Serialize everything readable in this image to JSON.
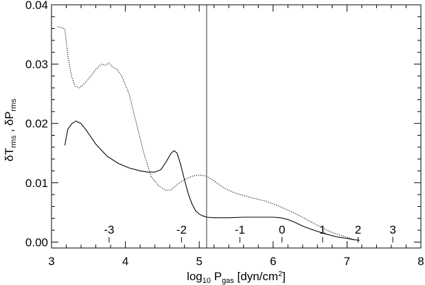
{
  "chart_data": {
    "type": "line",
    "xlabel": {
      "base": "log",
      "base_sub": "10",
      "mid": " P",
      "mid_sub": "gas",
      "tail": " [dyn/cm",
      "sup": "2",
      "close": "]"
    },
    "ylabel": {
      "d1": "δT",
      "s1": "rms",
      "sep": " , δP",
      "s2": "rms"
    },
    "xlim": [
      3,
      8
    ],
    "ylim": [
      -0.001,
      0.04
    ],
    "x_ticks": [
      "3",
      "4",
      "5",
      "6",
      "7",
      "8"
    ],
    "x_tick_values": [
      3,
      4,
      5,
      6,
      7,
      8
    ],
    "y_ticks": [
      "0.00",
      "0.01",
      "0.02",
      "0.03",
      "0.04"
    ],
    "y_tick_values": [
      0.0,
      0.01,
      0.02,
      0.03,
      0.04
    ],
    "vline_x": 5.1,
    "secondary_labels": [
      {
        "label": "-3",
        "x": 3.78
      },
      {
        "label": "-2",
        "x": 4.76
      },
      {
        "label": "-1",
        "x": 5.55
      },
      {
        "label": "0",
        "x": 6.12
      },
      {
        "label": "1",
        "x": 6.67
      },
      {
        "label": "2",
        "x": 7.15
      },
      {
        "label": "3",
        "x": 7.62
      }
    ],
    "series": [
      {
        "style": "solid",
        "x": [
          3.18,
          3.22,
          3.27,
          3.33,
          3.4,
          3.48,
          3.6,
          3.75,
          3.9,
          4.05,
          4.2,
          4.3,
          4.4,
          4.48,
          4.55,
          4.62,
          4.66,
          4.7,
          4.75,
          4.8,
          4.85,
          4.9,
          4.95,
          5.0,
          5.05,
          5.1,
          5.2,
          5.4,
          5.6,
          5.8,
          6.0,
          6.1,
          6.2,
          6.3,
          6.4,
          6.55,
          6.7,
          6.85,
          7.0,
          7.1,
          7.17
        ],
        "y": [
          0.0163,
          0.019,
          0.0199,
          0.0204,
          0.02,
          0.0187,
          0.0165,
          0.0145,
          0.0133,
          0.0125,
          0.012,
          0.0118,
          0.0118,
          0.0122,
          0.0135,
          0.015,
          0.0154,
          0.015,
          0.013,
          0.0105,
          0.0082,
          0.0065,
          0.0053,
          0.0047,
          0.0044,
          0.0042,
          0.0041,
          0.0041,
          0.0042,
          0.0042,
          0.0042,
          0.0041,
          0.0038,
          0.0033,
          0.0027,
          0.002,
          0.0014,
          0.0009,
          0.0006,
          0.0004,
          0.0003
        ]
      },
      {
        "style": "dotted",
        "x": [
          3.08,
          3.13,
          3.18,
          3.22,
          3.27,
          3.32,
          3.38,
          3.45,
          3.52,
          3.58,
          3.63,
          3.68,
          3.73,
          3.78,
          3.83,
          3.88,
          3.95,
          4.05,
          4.15,
          4.25,
          4.35,
          4.45,
          4.55,
          4.62,
          4.7,
          4.8,
          4.9,
          5.0,
          5.1,
          5.2,
          5.35,
          5.5,
          5.7,
          5.9,
          6.05,
          6.2,
          6.35,
          6.5,
          6.65,
          6.8,
          6.95,
          7.05,
          7.1
        ],
        "y": [
          0.0363,
          0.0362,
          0.0359,
          0.0315,
          0.028,
          0.0263,
          0.026,
          0.0268,
          0.0278,
          0.0288,
          0.0295,
          0.03,
          0.0298,
          0.0302,
          0.0295,
          0.0292,
          0.028,
          0.025,
          0.02,
          0.015,
          0.011,
          0.0095,
          0.0087,
          0.0088,
          0.0097,
          0.0105,
          0.0111,
          0.0113,
          0.0111,
          0.0103,
          0.009,
          0.0082,
          0.0075,
          0.0069,
          0.0062,
          0.0054,
          0.0045,
          0.0035,
          0.0025,
          0.0016,
          0.001,
          0.0006,
          0.0004
        ]
      }
    ]
  }
}
